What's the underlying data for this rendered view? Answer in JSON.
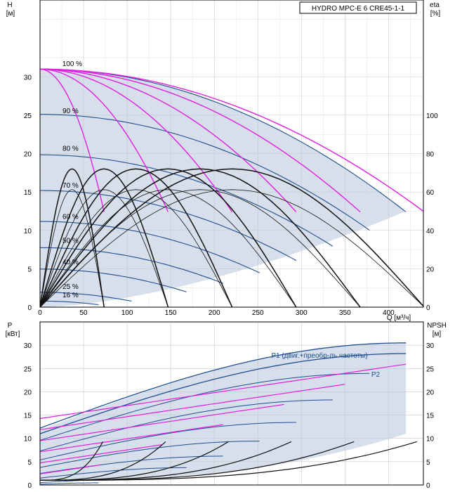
{
  "chart_data": [
    {
      "type": "line",
      "name": "head-curve",
      "title": "HYDRO MPC-E 6 CRE45-1-1",
      "xlabel": "Q [м³/ч]",
      "ylabel_lines": [
        "H",
        "[м]"
      ],
      "y2label_lines": [
        "eta",
        "[%]"
      ],
      "xlim": [
        0,
        440
      ],
      "ylim": [
        0,
        40
      ],
      "y2lim": [
        0,
        160
      ],
      "xticks": [
        0,
        50,
        100,
        150,
        200,
        250,
        300,
        350,
        400
      ],
      "yticks": [
        0,
        5,
        10,
        15,
        20,
        25,
        30
      ],
      "y2ticks": [
        0,
        20,
        40,
        60,
        80,
        100
      ],
      "grid": true,
      "speed_labels": [
        {
          "label": "100 %",
          "q": 37,
          "h": 31.2
        },
        {
          "label": "90 %",
          "q": 35,
          "h": 25.1
        },
        {
          "label": "80 %",
          "q": 35,
          "h": 20.2
        },
        {
          "label": "70 %",
          "q": 35,
          "h": 15.4
        },
        {
          "label": "60 %",
          "q": 35,
          "h": 11.3
        },
        {
          "label": "50 %",
          "q": 35,
          "h": 8.2
        },
        {
          "label": "40 %",
          "q": 35,
          "h": 5.4
        },
        {
          "label": "25 %",
          "q": 35,
          "h": 2.2
        },
        {
          "label": "16 %",
          "q": 35,
          "h": 1.1
        }
      ],
      "envelope_qmax_100": 420,
      "max_head": 31.0,
      "pumps": [
        1,
        2,
        3,
        4,
        5,
        6
      ],
      "series_colors": {
        "speed": "#1f4e8c",
        "eta_total": "#e020e0",
        "eta": "#111111",
        "fill": "#d6dfeb"
      }
    },
    {
      "type": "line",
      "name": "power-curve",
      "ylabel_lines": [
        "P",
        "[кВт]"
      ],
      "y2label_lines": [
        "NPSH",
        "[м]"
      ],
      "xlim": [
        0,
        440
      ],
      "ylim": [
        0,
        35
      ],
      "yticks": [
        0,
        5,
        10,
        15,
        20,
        25,
        30
      ],
      "y2ticks": [
        0,
        5,
        10,
        15,
        20,
        25,
        30
      ],
      "grid": true,
      "labels": {
        "p1": "P1 (двиг.+преобр-ль частоты)",
        "p2": "P2"
      },
      "p1_max": 30.5,
      "p2_max": 28.2,
      "npsh_max": 9.3
    }
  ]
}
